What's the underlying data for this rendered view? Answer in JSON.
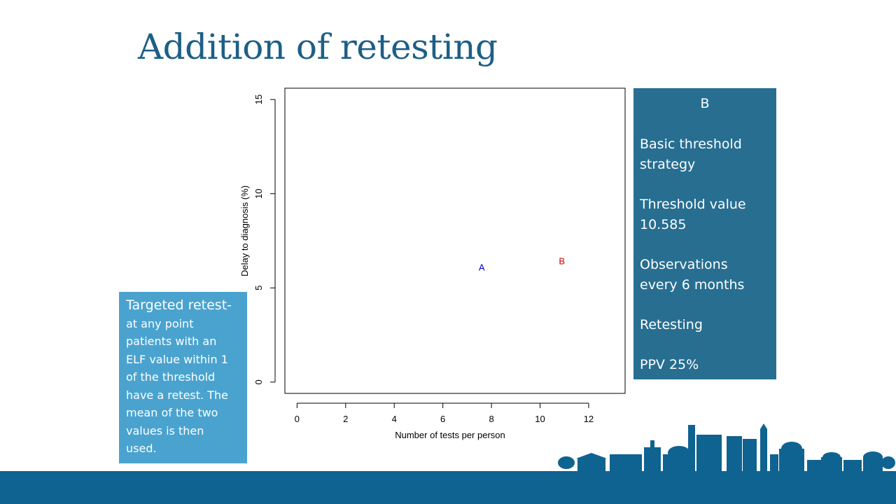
{
  "slide": {
    "title": "Addition of retesting"
  },
  "info_box": {
    "header": "B",
    "lines": [
      [
        "Basic threshold",
        "strategy"
      ],
      [
        "Threshold value",
        "10.585"
      ],
      [
        "Observations",
        "every 6 months"
      ],
      [
        "Retesting"
      ],
      [
        "PPV 25%"
      ]
    ]
  },
  "note_box": {
    "lead": "Targeted retest-",
    "lines": [
      "at any point",
      "patients with an",
      "ELF value within 1",
      "of the threshold",
      "have a retest. The",
      "mean of the two",
      "values is then",
      "used."
    ]
  },
  "chart_data": {
    "type": "scatter",
    "xlabel": "Number of tests per person",
    "ylabel": "Delay to diagnosis (%)",
    "xlim": [
      -0.5,
      13.5
    ],
    "ylim": [
      -0.6,
      15.6
    ],
    "xticks": [
      0,
      2,
      4,
      6,
      8,
      10,
      12
    ],
    "yticks": [
      0,
      5,
      10,
      15
    ],
    "points": [
      {
        "label": "A",
        "x": 7.6,
        "y": 6.1,
        "color": "#0000cc"
      },
      {
        "label": "B",
        "x": 10.9,
        "y": 6.45,
        "color": "#cc0000"
      }
    ],
    "grid": false
  },
  "colors": {
    "title": "#1d5f86",
    "info_box": "#276e91",
    "note_box": "#4aa3cf",
    "footer": "#0f6390"
  }
}
